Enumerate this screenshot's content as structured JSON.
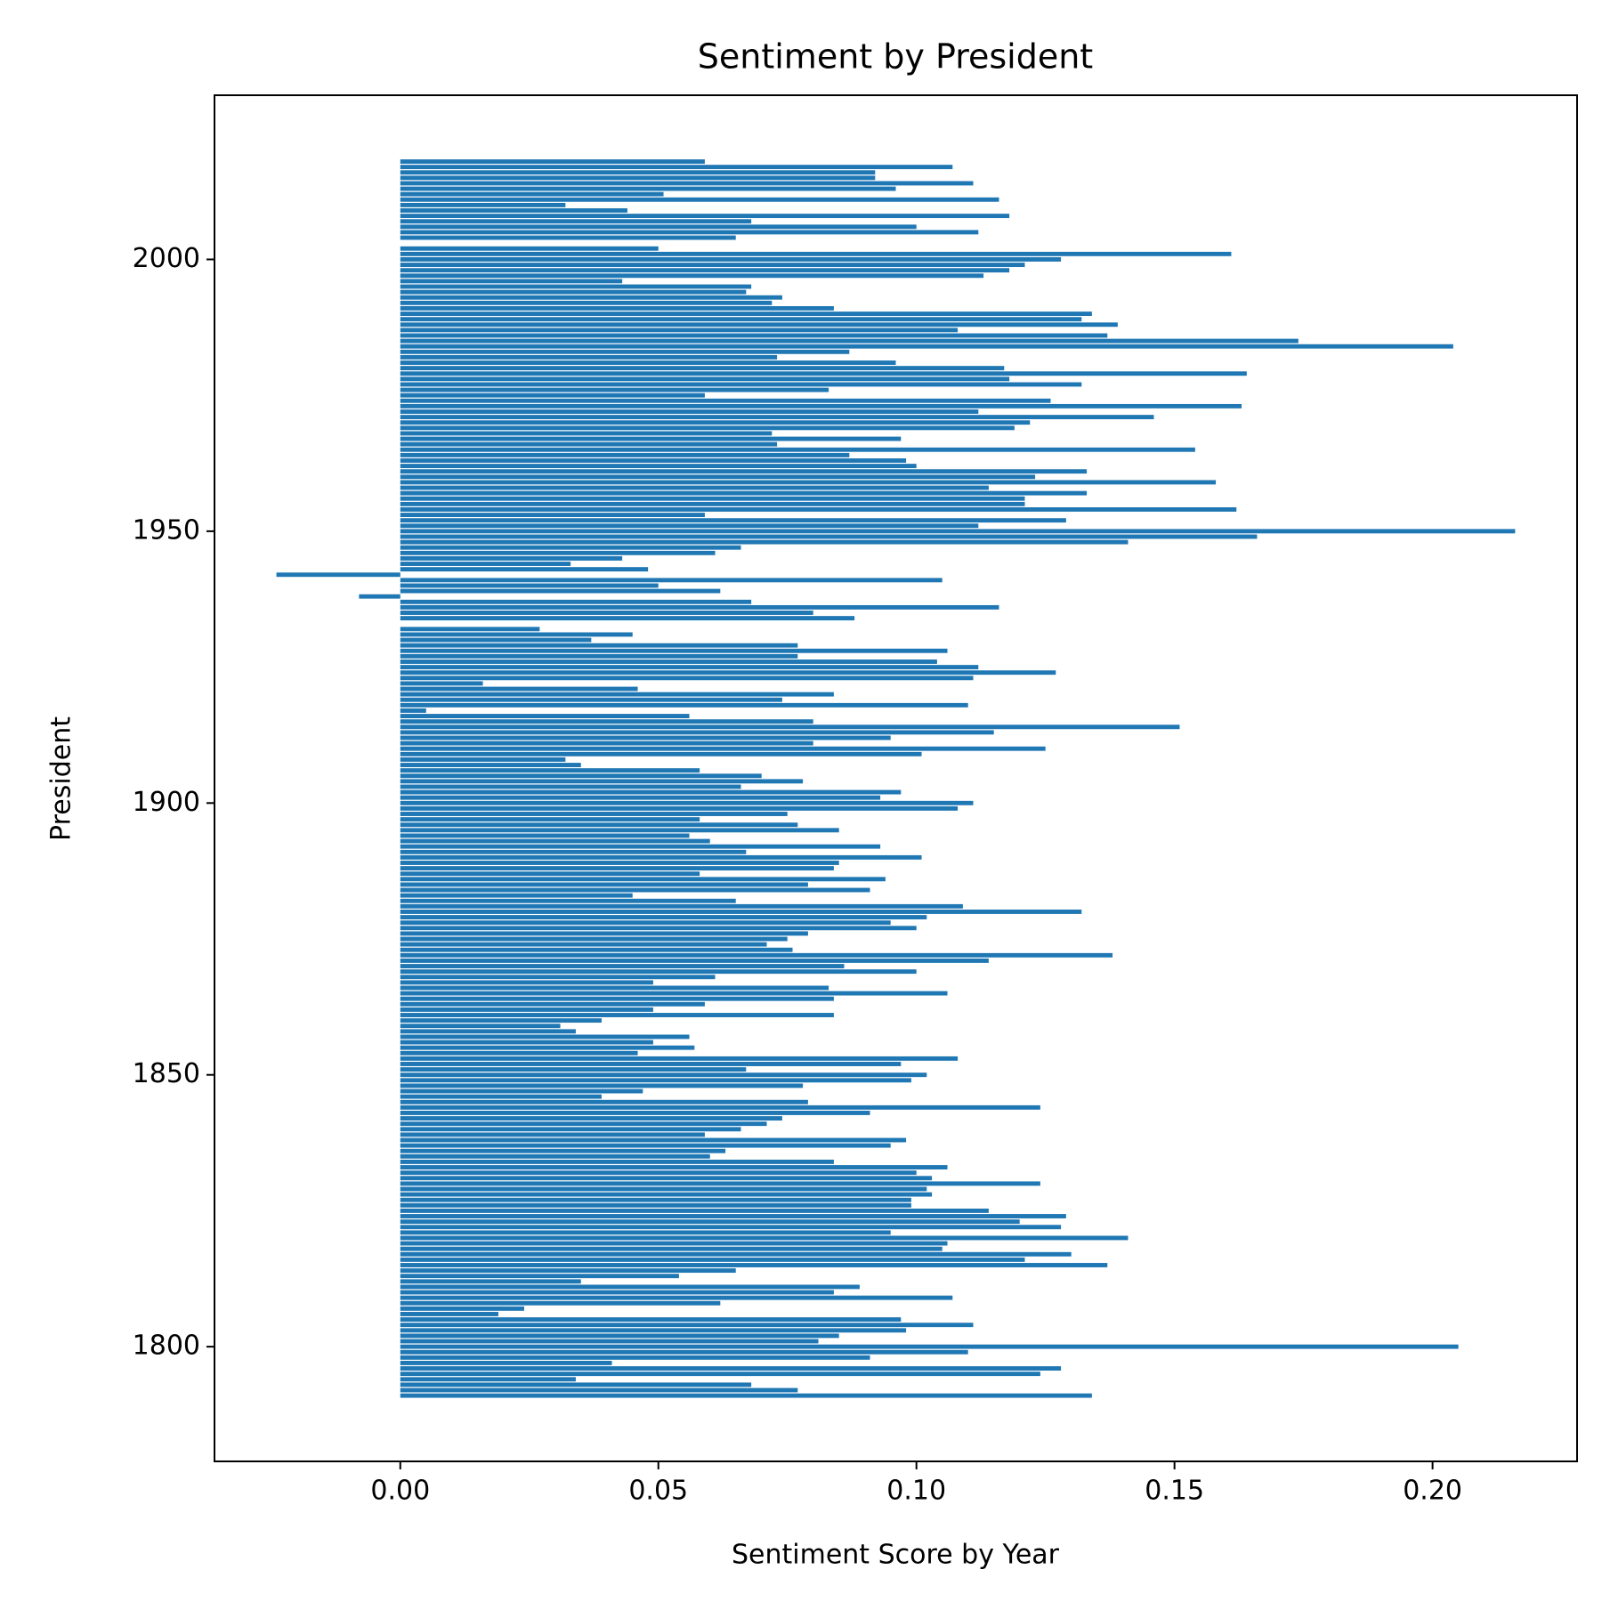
{
  "chart_data": {
    "type": "barh",
    "title": "Sentiment by President",
    "xlabel": "Sentiment Score by Year",
    "ylabel": "President",
    "color": "#1f77b4",
    "xlim": [
      -0.036,
      0.228
    ],
    "xticks": [
      {
        "value": 0,
        "label": "0.00"
      },
      {
        "value": 0.05,
        "label": "0.05"
      },
      {
        "value": 0.1,
        "label": "0.10"
      },
      {
        "value": 0.15,
        "label": "0.15"
      },
      {
        "value": 0.2,
        "label": "0.20"
      }
    ],
    "ylim": [
      1778.9,
      2030.2
    ],
    "yticks": [
      1800,
      1850,
      1900,
      1950,
      2000
    ],
    "years": [
      2018,
      2017,
      2016,
      2015,
      2014,
      2013,
      2012,
      2011,
      2010,
      2009,
      2008,
      2007,
      2006,
      2005,
      2004,
      2002,
      2001,
      2000,
      1999,
      1998,
      1997,
      1996,
      1995,
      1994,
      1993,
      1992,
      1991,
      1990,
      1989,
      1988,
      1987,
      1986,
      1985,
      1984,
      1983,
      1982,
      1981,
      1980,
      1979,
      1978,
      1977,
      1976,
      1975,
      1974,
      1973,
      1972,
      1971,
      1970,
      1969,
      1968,
      1967,
      1966,
      1965,
      1964,
      1963,
      1962,
      1961,
      1960,
      1959,
      1958,
      1957,
      1956,
      1955,
      1954,
      1953,
      1952,
      1951,
      1950,
      1949,
      1948,
      1947,
      1946,
      1945,
      1944,
      1943,
      1942,
      1941,
      1940,
      1939,
      1938,
      1937,
      1936,
      1935,
      1934,
      1932,
      1931,
      1930,
      1929,
      1928,
      1927,
      1926,
      1925,
      1924,
      1923,
      1922,
      1921,
      1920,
      1919,
      1918,
      1917,
      1916,
      1915,
      1914,
      1913,
      1912,
      1911,
      1910,
      1909,
      1908,
      1907,
      1906,
      1905,
      1904,
      1903,
      1902,
      1901,
      1900,
      1899,
      1898,
      1897,
      1896,
      1895,
      1894,
      1893,
      1892,
      1891,
      1890,
      1889,
      1888,
      1887,
      1886,
      1885,
      1884,
      1883,
      1882,
      1881,
      1880,
      1879,
      1878,
      1877,
      1876,
      1875,
      1874,
      1873,
      1872,
      1871,
      1870,
      1869,
      1868,
      1867,
      1866,
      1865,
      1864,
      1863,
      1862,
      1861,
      1860,
      1859,
      1858,
      1857,
      1856,
      1855,
      1854,
      1853,
      1852,
      1851,
      1850,
      1849,
      1848,
      1847,
      1846,
      1845,
      1844,
      1843,
      1842,
      1841,
      1840,
      1839,
      1838,
      1837,
      1836,
      1835,
      1834,
      1833,
      1832,
      1831,
      1830,
      1829,
      1828,
      1827,
      1826,
      1825,
      1824,
      1823,
      1822,
      1821,
      1820,
      1819,
      1818,
      1817,
      1816,
      1815,
      1814,
      1813,
      1812,
      1811,
      1810,
      1809,
      1808,
      1807,
      1806,
      1805,
      1804,
      1803,
      1802,
      1801,
      1800,
      1799,
      1798,
      1797,
      1796,
      1795,
      1794,
      1793,
      1792,
      1791
    ],
    "values": [
      0.059,
      0.107,
      0.092,
      0.092,
      0.111,
      0.096,
      0.051,
      0.116,
      0.032,
      0.044,
      0.118,
      0.068,
      0.1,
      0.112,
      0.065,
      0.05,
      0.161,
      0.128,
      0.121,
      0.118,
      0.113,
      0.043,
      0.068,
      0.067,
      0.074,
      0.072,
      0.084,
      0.134,
      0.132,
      0.139,
      0.108,
      0.137,
      0.174,
      0.204,
      0.087,
      0.073,
      0.096,
      0.117,
      0.164,
      0.118,
      0.132,
      0.083,
      0.059,
      0.126,
      0.163,
      0.112,
      0.146,
      0.122,
      0.119,
      0.072,
      0.097,
      0.073,
      0.154,
      0.087,
      0.098,
      0.1,
      0.133,
      0.123,
      0.158,
      0.114,
      0.133,
      0.121,
      0.121,
      0.162,
      0.059,
      0.129,
      0.112,
      0.216,
      0.166,
      0.141,
      0.066,
      0.061,
      0.043,
      0.033,
      0.048,
      -0.024,
      0.105,
      0.05,
      0.062,
      -0.008,
      0.068,
      0.116,
      0.08,
      0.088,
      0.027,
      0.045,
      0.037,
      0.077,
      0.106,
      0.077,
      0.104,
      0.112,
      0.127,
      0.111,
      0.016,
      0.046,
      0.084,
      0.074,
      0.11,
      0.005,
      0.056,
      0.08,
      0.151,
      0.115,
      0.095,
      0.08,
      0.125,
      0.101,
      0.032,
      0.035,
      0.058,
      0.07,
      0.078,
      0.066,
      0.097,
      0.093,
      0.111,
      0.108,
      0.075,
      0.058,
      0.077,
      0.085,
      0.056,
      0.06,
      0.093,
      0.067,
      0.101,
      0.085,
      0.084,
      0.058,
      0.094,
      0.079,
      0.091,
      0.045,
      0.065,
      0.109,
      0.132,
      0.102,
      0.095,
      0.1,
      0.079,
      0.075,
      0.071,
      0.076,
      0.138,
      0.114,
      0.086,
      0.1,
      0.061,
      0.049,
      0.083,
      0.106,
      0.084,
      0.059,
      0.049,
      0.084,
      0.039,
      0.031,
      0.034,
      0.056,
      0.049,
      0.057,
      0.046,
      0.108,
      0.097,
      0.067,
      0.102,
      0.099,
      0.078,
      0.047,
      0.039,
      0.079,
      0.124,
      0.091,
      0.074,
      0.071,
      0.066,
      0.059,
      0.098,
      0.095,
      0.063,
      0.06,
      0.084,
      0.106,
      0.1,
      0.103,
      0.124,
      0.102,
      0.103,
      0.099,
      0.099,
      0.114,
      0.129,
      0.12,
      0.128,
      0.095,
      0.141,
      0.106,
      0.105,
      0.13,
      0.121,
      0.137,
      0.065,
      0.054,
      0.035,
      0.089,
      0.084,
      0.107,
      0.062,
      0.024,
      0.019,
      0.097,
      0.111,
      0.098,
      0.085,
      0.081,
      0.205,
      0.11,
      0.091,
      0.041,
      0.128,
      0.124,
      0.034,
      0.068,
      0.077,
      0.134
    ]
  }
}
